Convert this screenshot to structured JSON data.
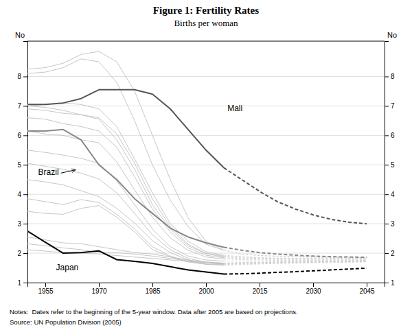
{
  "chart_data": {
    "type": "line",
    "title": "Figure 1: Fertility Rates",
    "subtitle": "Births per woman",
    "ylabel": "No",
    "y2label": "No",
    "notes_label": "Notes:",
    "notes": "Dates refer to the beginning of the 5-year window. Data after 2005 are based on projections.",
    "source": "Source: UN Population Division (2005)",
    "xlim": [
      1950,
      2050
    ],
    "xticks": [
      1955,
      1970,
      1985,
      2000,
      2015,
      2030,
      2045
    ],
    "ylim": [
      1,
      9.2
    ],
    "yticks": [
      1,
      2,
      3,
      4,
      5,
      6,
      7,
      8
    ],
    "y2lim": [
      1,
      9.2
    ],
    "y2ticks": [
      1,
      2,
      3,
      4,
      5,
      6,
      7,
      8
    ],
    "grid": true,
    "x": [
      1950,
      1955,
      1960,
      1965,
      1970,
      1975,
      1980,
      1985,
      1990,
      1995,
      2000,
      2005,
      2010,
      2015,
      2020,
      2025,
      2030,
      2035,
      2040,
      2045
    ],
    "series": [
      {
        "color": "#c0c0c0",
        "line_style": "solid",
        "values": [
          8.25,
          8.3,
          8.45,
          8.75,
          8.85,
          8.5,
          7.5,
          6.0,
          4.5,
          3.2,
          2.4,
          2.1,
          null,
          null,
          null,
          null,
          null,
          null,
          null,
          null
        ]
      },
      {
        "color": "#c0c0c0",
        "line_style": "solid",
        "values": [
          8.1,
          8.15,
          8.3,
          8.6,
          8.5,
          7.8,
          6.5,
          5.0,
          3.8,
          2.9,
          2.3,
          2.1,
          null,
          null,
          null,
          null,
          null,
          null,
          null,
          null
        ]
      },
      {
        "color": "#c0c0c0",
        "line_style": "solid",
        "values": [
          7.0,
          7.05,
          7.1,
          7.05,
          6.9,
          6.3,
          5.2,
          4.05,
          3.0,
          2.4,
          2.05,
          1.93,
          null,
          null,
          null,
          null,
          null,
          null,
          null,
          null
        ]
      },
      {
        "color": "#c0c0c0",
        "line_style": "solid",
        "values": [
          7.0,
          6.95,
          6.85,
          6.7,
          6.6,
          6.05,
          5.05,
          3.85,
          2.9,
          2.3,
          2.0,
          1.9,
          null,
          null,
          null,
          null,
          null,
          null,
          null,
          null
        ]
      },
      {
        "color": "#c0c0c0",
        "line_style": "solid",
        "values": [
          6.9,
          6.85,
          6.75,
          6.7,
          6.55,
          5.85,
          4.85,
          3.65,
          2.82,
          2.25,
          1.98,
          1.87,
          null,
          null,
          null,
          null,
          null,
          null,
          null,
          null
        ]
      },
      {
        "color": "#c0c0c0",
        "line_style": "solid",
        "values": [
          6.6,
          6.55,
          6.4,
          6.3,
          6.15,
          5.6,
          4.6,
          3.5,
          2.72,
          2.18,
          1.93,
          1.84,
          null,
          null,
          null,
          null,
          null,
          null,
          null,
          null
        ]
      },
      {
        "color": "#c0c0c0",
        "line_style": "solid",
        "values": [
          6.15,
          6.05,
          6.0,
          5.85,
          5.75,
          5.1,
          4.15,
          3.22,
          2.52,
          2.1,
          1.87,
          1.8,
          null,
          null,
          null,
          null,
          null,
          null,
          null,
          null
        ]
      },
      {
        "color": "#c0c0c0",
        "line_style": "solid",
        "values": [
          5.5,
          5.42,
          5.33,
          5.22,
          5.05,
          4.45,
          3.65,
          2.82,
          2.22,
          1.9,
          1.77,
          1.73,
          null,
          null,
          null,
          null,
          null,
          null,
          null,
          null
        ]
      },
      {
        "color": "#c0c0c0",
        "line_style": "solid",
        "values": [
          5.05,
          4.95,
          4.85,
          4.72,
          4.52,
          4.05,
          3.35,
          2.62,
          2.12,
          1.82,
          1.7,
          1.66,
          null,
          null,
          null,
          null,
          null,
          null,
          null,
          null
        ]
      },
      {
        "color": "#c0c0c0",
        "line_style": "solid",
        "values": [
          4.5,
          4.42,
          4.32,
          4.12,
          3.92,
          3.52,
          3.02,
          2.42,
          2.02,
          1.77,
          1.67,
          1.63,
          null,
          null,
          null,
          null,
          null,
          null,
          null,
          null
        ]
      },
      {
        "color": "#c0c0c0",
        "line_style": "solid",
        "values": [
          3.85,
          3.75,
          3.65,
          3.82,
          3.72,
          3.32,
          2.82,
          2.22,
          1.9,
          1.72,
          1.63,
          1.61,
          null,
          null,
          null,
          null,
          null,
          null,
          null,
          null
        ]
      },
      {
        "color": "#c0c0c0",
        "line_style": "solid",
        "values": [
          3.42,
          3.35,
          3.32,
          3.52,
          3.62,
          3.22,
          2.72,
          2.12,
          1.87,
          1.7,
          1.62,
          1.59,
          null,
          null,
          null,
          null,
          null,
          null,
          null,
          null
        ]
      },
      {
        "color": "#c0c0c0",
        "line_style": "solid",
        "values": [
          2.55,
          2.45,
          2.35,
          2.32,
          2.22,
          2.12,
          2.02,
          1.97,
          1.87,
          1.77,
          1.7,
          1.66,
          null,
          null,
          null,
          null,
          null,
          null,
          null,
          null
        ]
      },
      {
        "color": "#c0c0c0",
        "line_style": "solid",
        "values": [
          2.32,
          2.25,
          2.18,
          2.12,
          2.02,
          2.02,
          1.97,
          1.9,
          1.82,
          1.74,
          1.67,
          1.63,
          null,
          null,
          null,
          null,
          null,
          null,
          null,
          null
        ]
      },
      {
        "color": "#c0c0c0",
        "line_style": "solid",
        "values": [
          2.12,
          2.07,
          2.02,
          2.0,
          1.97,
          1.92,
          1.87,
          1.82,
          1.77,
          1.72,
          1.67,
          1.65,
          null,
          null,
          null,
          null,
          null,
          null,
          null,
          null
        ]
      },
      {
        "color": "#d0d0d0",
        "line_style": "dashed",
        "values": [
          null,
          null,
          null,
          null,
          null,
          null,
          null,
          null,
          null,
          null,
          null,
          2.1,
          1.97,
          1.92,
          1.9,
          1.89,
          1.88,
          1.87,
          1.86,
          1.85
        ]
      },
      {
        "color": "#d0d0d0",
        "line_style": "dashed",
        "values": [
          null,
          null,
          null,
          null,
          null,
          null,
          null,
          null,
          null,
          null,
          null,
          2.1,
          1.97,
          1.92,
          1.89,
          1.87,
          1.86,
          1.85,
          1.84,
          1.83
        ]
      },
      {
        "color": "#d0d0d0",
        "line_style": "dashed",
        "values": [
          null,
          null,
          null,
          null,
          null,
          null,
          null,
          null,
          null,
          null,
          null,
          1.93,
          1.88,
          1.85,
          1.83,
          1.82,
          1.82,
          1.82,
          1.82,
          1.82
        ]
      },
      {
        "color": "#d0d0d0",
        "line_style": "dashed",
        "values": [
          null,
          null,
          null,
          null,
          null,
          null,
          null,
          null,
          null,
          null,
          null,
          1.9,
          1.87,
          1.84,
          1.82,
          1.81,
          1.81,
          1.81,
          1.81,
          1.81
        ]
      },
      {
        "color": "#d0d0d0",
        "line_style": "dashed",
        "values": [
          null,
          null,
          null,
          null,
          null,
          null,
          null,
          null,
          null,
          null,
          null,
          1.87,
          1.84,
          1.82,
          1.81,
          1.8,
          1.8,
          1.8,
          1.8,
          1.8
        ]
      },
      {
        "color": "#d0d0d0",
        "line_style": "dashed",
        "values": [
          null,
          null,
          null,
          null,
          null,
          null,
          null,
          null,
          null,
          null,
          null,
          1.84,
          1.82,
          1.8,
          1.79,
          1.79,
          1.79,
          1.79,
          1.79,
          1.79
        ]
      },
      {
        "color": "#d0d0d0",
        "line_style": "dashed",
        "values": [
          null,
          null,
          null,
          null,
          null,
          null,
          null,
          null,
          null,
          null,
          null,
          1.8,
          1.78,
          1.77,
          1.76,
          1.76,
          1.76,
          1.76,
          1.76,
          1.76
        ]
      },
      {
        "color": "#d0d0d0",
        "line_style": "dashed",
        "values": [
          null,
          null,
          null,
          null,
          null,
          null,
          null,
          null,
          null,
          null,
          null,
          1.73,
          1.73,
          1.73,
          1.73,
          1.73,
          1.73,
          1.73,
          1.73,
          1.73
        ]
      },
      {
        "color": "#d0d0d0",
        "line_style": "dashed",
        "values": [
          null,
          null,
          null,
          null,
          null,
          null,
          null,
          null,
          null,
          null,
          null,
          1.66,
          1.68,
          1.69,
          1.7,
          1.71,
          1.72,
          1.73,
          1.74,
          1.75
        ]
      },
      {
        "color": "#d0d0d0",
        "line_style": "dashed",
        "values": [
          null,
          null,
          null,
          null,
          null,
          null,
          null,
          null,
          null,
          null,
          null,
          1.63,
          1.65,
          1.67,
          1.69,
          1.7,
          1.71,
          1.72,
          1.73,
          1.74
        ]
      },
      {
        "color": "#d0d0d0",
        "line_style": "dashed",
        "values": [
          null,
          null,
          null,
          null,
          null,
          null,
          null,
          null,
          null,
          null,
          null,
          1.61,
          1.63,
          1.65,
          1.67,
          1.68,
          1.69,
          1.7,
          1.71,
          1.72
        ]
      },
      {
        "color": "#d0d0d0",
        "line_style": "dashed",
        "values": [
          null,
          null,
          null,
          null,
          null,
          null,
          null,
          null,
          null,
          null,
          null,
          1.59,
          1.61,
          1.63,
          1.65,
          1.66,
          1.67,
          1.68,
          1.69,
          1.7
        ]
      },
      {
        "color": "#d0d0d0",
        "line_style": "dashed",
        "values": [
          null,
          null,
          null,
          null,
          null,
          null,
          null,
          null,
          null,
          null,
          null,
          1.66,
          1.68,
          1.69,
          1.7,
          1.71,
          1.72,
          1.73,
          1.74,
          1.75
        ]
      },
      {
        "color": "#d0d0d0",
        "line_style": "dashed",
        "values": [
          null,
          null,
          null,
          null,
          null,
          null,
          null,
          null,
          null,
          null,
          null,
          1.63,
          1.65,
          1.66,
          1.67,
          1.68,
          1.69,
          1.7,
          1.71,
          1.72
        ]
      },
      {
        "color": "#d0d0d0",
        "line_style": "dashed",
        "values": [
          null,
          null,
          null,
          null,
          null,
          null,
          null,
          null,
          null,
          null,
          null,
          1.65,
          1.66,
          1.67,
          1.68,
          1.69,
          1.7,
          1.71,
          1.72,
          1.73
        ]
      },
      {
        "color": "#888888",
        "line_style": "solid",
        "values": [
          6.15,
          6.15,
          6.2,
          5.85,
          5.0,
          4.5,
          3.85,
          3.35,
          2.85,
          2.55,
          2.35,
          2.2,
          null,
          null,
          null,
          null,
          null,
          null,
          null,
          null
        ]
      },
      {
        "color": "#888888",
        "line_style": "dashed",
        "values": [
          null,
          null,
          null,
          null,
          null,
          null,
          null,
          null,
          null,
          null,
          null,
          2.2,
          2.1,
          2.02,
          1.97,
          1.93,
          1.9,
          1.88,
          1.87,
          1.86
        ]
      },
      {
        "color": "#555555",
        "line_style": "solid",
        "values": [
          7.05,
          7.05,
          7.1,
          7.25,
          7.55,
          7.55,
          7.55,
          7.4,
          6.9,
          6.2,
          5.5,
          4.9,
          null,
          null,
          null,
          null,
          null,
          null,
          null,
          null
        ]
      },
      {
        "color": "#555555",
        "line_style": "dashed",
        "values": [
          null,
          null,
          null,
          null,
          null,
          null,
          null,
          null,
          null,
          null,
          null,
          4.9,
          4.5,
          4.1,
          3.75,
          3.5,
          3.3,
          3.15,
          3.05,
          3.0
        ]
      },
      {
        "color": "#000000",
        "line_style": "solid",
        "values": [
          2.75,
          2.37,
          2.0,
          2.02,
          2.08,
          1.78,
          1.72,
          1.65,
          1.54,
          1.43,
          1.36,
          1.29,
          null,
          null,
          null,
          null,
          null,
          null,
          null,
          null
        ]
      },
      {
        "color": "#000000",
        "line_style": "dashed",
        "values": [
          null,
          null,
          null,
          null,
          null,
          null,
          null,
          null,
          null,
          null,
          null,
          1.29,
          1.3,
          1.32,
          1.35,
          1.37,
          1.4,
          1.43,
          1.46,
          1.49
        ]
      }
    ],
    "annotations": [
      {
        "text": "Mali",
        "x": 2006,
        "y": 6.9
      },
      {
        "text": "Japan",
        "x": 1958,
        "y": 1.63
      },
      {
        "text": "Brazil",
        "x": 1953,
        "y": 4.72,
        "arrow_x": 1963.5,
        "arrow_y": 4.83
      }
    ]
  }
}
